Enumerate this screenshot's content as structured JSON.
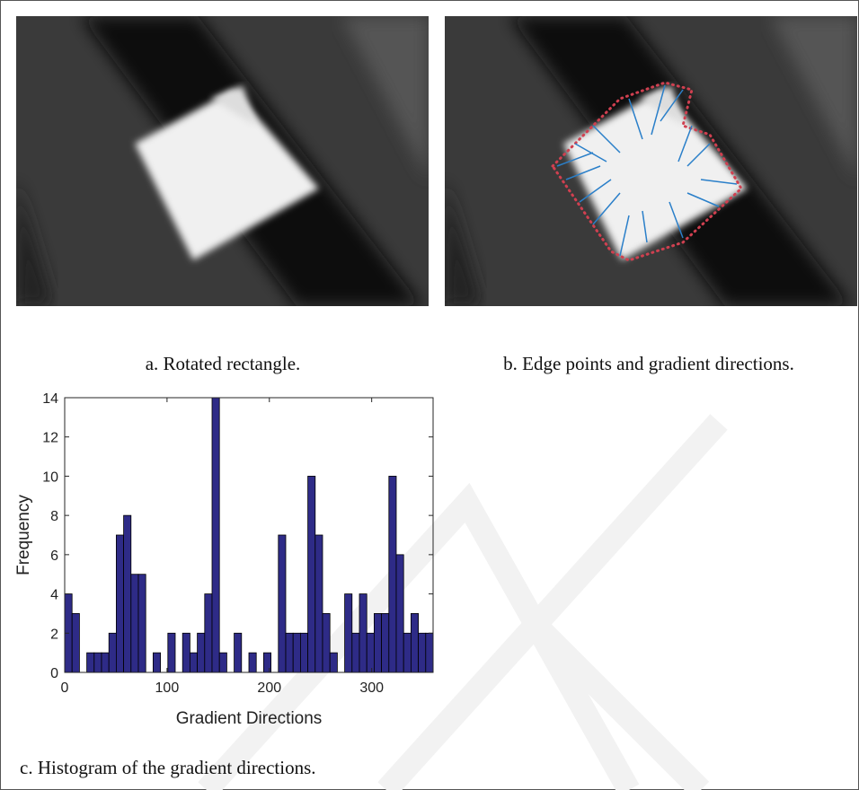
{
  "captions": {
    "a": "a.  Rotated rectangle.",
    "b": "b.  Edge points and gradient directions.",
    "c": "c.  Histogram of the gradient directions."
  },
  "chart_data": {
    "type": "histogram",
    "x_label": "Gradient Directions",
    "y_label": "Frequency",
    "bins": [
      0,
      7.2,
      14.4,
      21.6,
      28.8,
      36,
      43.2,
      50.4,
      57.6,
      64.8,
      72,
      79.2,
      86.4,
      93.6,
      100.8,
      108,
      115.2,
      122.4,
      129.6,
      136.8,
      144,
      151.2,
      158.4,
      165.6,
      172.8,
      180,
      187.2,
      194.4,
      201.6,
      208.8,
      216,
      223.2,
      230.4,
      237.6,
      244.8,
      252,
      259.2,
      266.4,
      273.6,
      280.8,
      288,
      295.2,
      302.4,
      309.6,
      316.8,
      324,
      331.2,
      338.4,
      345.6,
      352.8,
      360
    ],
    "values": [
      4,
      3,
      0,
      1,
      1,
      1,
      2,
      7,
      8,
      5,
      5,
      0,
      1,
      0,
      2,
      0,
      2,
      1,
      2,
      4,
      14,
      1,
      0,
      2,
      0,
      1,
      0,
      1,
      0,
      7,
      2,
      2,
      2,
      10,
      7,
      3,
      1,
      0,
      4,
      2,
      4,
      2,
      3,
      3,
      10,
      6,
      2,
      3,
      2,
      2
    ],
    "color": "#2e2b87",
    "xlim": [
      0,
      360
    ],
    "xticks": [
      0,
      100,
      200,
      300
    ],
    "ylim": [
      0,
      14
    ],
    "yticks": [
      0,
      2,
      4,
      6,
      8,
      10,
      12,
      14
    ]
  }
}
